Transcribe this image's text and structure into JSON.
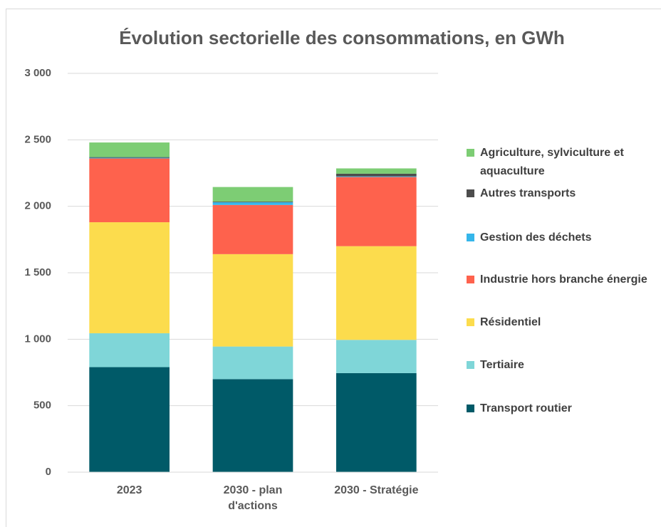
{
  "chart_data": {
    "type": "stacked_bar",
    "title": "Évolution sectorielle des consommations, en GWh",
    "categories": [
      "2023",
      "2030 - plan d'actions",
      "2030 - Stratégie"
    ],
    "series": [
      {
        "name": "Transport routier",
        "color": "#005a68",
        "values": [
          790,
          700,
          745
        ]
      },
      {
        "name": "Tertiaire",
        "color": "#7fd6d8",
        "values": [
          255,
          245,
          250
        ]
      },
      {
        "name": "Résidentiel",
        "color": "#fcdc4d",
        "values": [
          835,
          695,
          705
        ]
      },
      {
        "name": "Industrie hors branche énergie",
        "color": "#fe624d",
        "values": [
          480,
          370,
          520
        ]
      },
      {
        "name": "Gestion des déchets",
        "color": "#35b6ea",
        "values": [
          5,
          20,
          5
        ]
      },
      {
        "name": "Autres transports",
        "color": "#4d4d4d",
        "values": [
          5,
          5,
          20
        ]
      },
      {
        "name": "Agriculture, sylviculture et aquaculture",
        "color": "#7dcd74",
        "values": [
          110,
          110,
          40
        ]
      }
    ],
    "ylim": [
      0,
      3000
    ],
    "yticks": [
      0,
      500,
      {
        "value": 1000,
        "label": "1 000"
      },
      {
        "value": 1500,
        "label": "1 500"
      },
      {
        "value": 2000,
        "label": "2 000"
      },
      {
        "value": 2500,
        "label": "2 500"
      },
      {
        "value": 3000,
        "label": "3 000"
      }
    ],
    "grid": true,
    "legend": "right"
  }
}
